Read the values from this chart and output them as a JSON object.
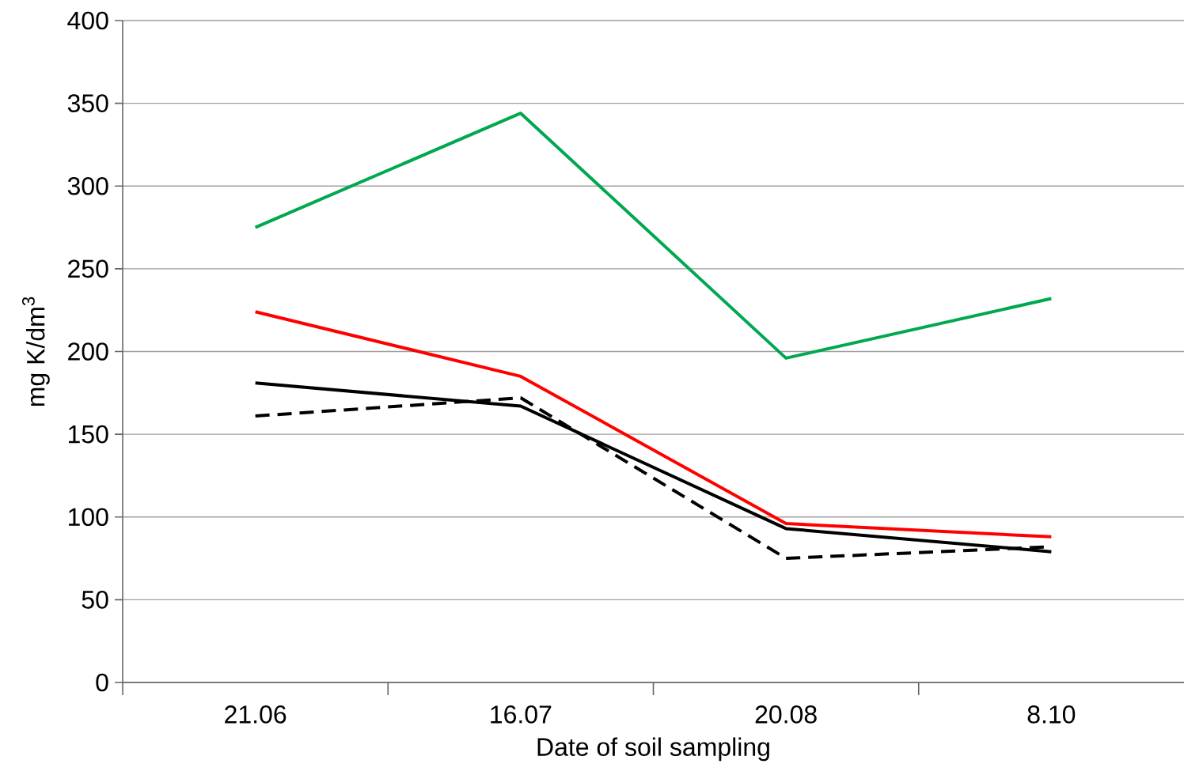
{
  "chart_data": {
    "type": "line",
    "xlabel": "Date of soil sampling",
    "ylabel": "mg K/dm$^{3}$",
    "categories": [
      "21.06",
      "16.07",
      "20.08",
      "8.10"
    ],
    "ylim": [
      0,
      400
    ],
    "yticks": [
      0,
      50,
      100,
      150,
      200,
      250,
      300,
      350,
      400
    ],
    "grid": "y",
    "series": [
      {
        "color": "#00a84f",
        "line_style": "solid",
        "values": [
          275,
          344,
          196,
          232
        ]
      },
      {
        "color": "#ff0000",
        "line_style": "solid",
        "values": [
          224,
          185,
          96,
          88
        ]
      },
      {
        "color": "#000000",
        "line_style": "solid",
        "values": [
          181,
          167,
          93,
          79
        ]
      },
      {
        "color": "#000000",
        "line_style": "dashed",
        "values": [
          161,
          172,
          75,
          82
        ]
      }
    ]
  }
}
